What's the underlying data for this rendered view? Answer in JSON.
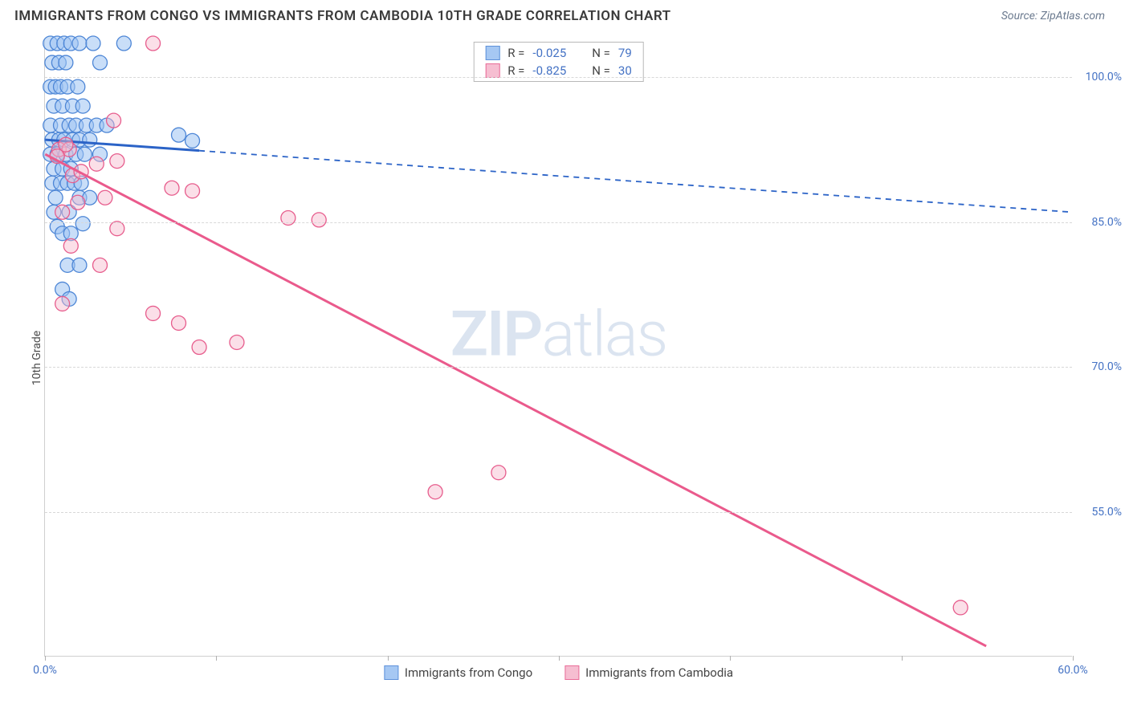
{
  "title": "IMMIGRANTS FROM CONGO VS IMMIGRANTS FROM CAMBODIA 10TH GRADE CORRELATION CHART",
  "source_label": "Source: ZipAtlas.com",
  "watermark_zip": "ZIP",
  "watermark_atlas": "atlas",
  "y_axis": {
    "label": "10th Grade"
  },
  "chart": {
    "type": "scatter-correlation",
    "background_color": "#ffffff",
    "grid_color": "#d8d8d8",
    "axis_color": "#cfcfcf",
    "tick_label_color": "#4472c4",
    "x_min": 0.0,
    "x_max": 60.0,
    "y_min": 40.0,
    "y_max": 104.0,
    "y_ticks": [
      {
        "value": 100.0,
        "label": "100.0%"
      },
      {
        "value": 85.0,
        "label": "85.0%"
      },
      {
        "value": 70.0,
        "label": "70.0%"
      },
      {
        "value": 55.0,
        "label": "55.0%"
      }
    ],
    "x_ticks": [
      {
        "value": 0.0,
        "label": "0.0%"
      },
      {
        "value": 10.0,
        "label": ""
      },
      {
        "value": 20.0,
        "label": ""
      },
      {
        "value": 30.0,
        "label": ""
      },
      {
        "value": 40.0,
        "label": ""
      },
      {
        "value": 50.0,
        "label": ""
      },
      {
        "value": 60.0,
        "label": "60.0%"
      }
    ],
    "series": [
      {
        "id": "congo",
        "name": "Immigrants from Congo",
        "fill": "#9dc3f2",
        "stroke": "#4d86d6",
        "fill_opacity": 0.55,
        "marker_radius": 9,
        "R": "-0.025",
        "N": "79",
        "trend": {
          "x1": 0.0,
          "y1": 93.5,
          "x2": 60.0,
          "y2": 86.0,
          "solid_until_x": 9.0,
          "color": "#2b63c7",
          "width": 3,
          "dash": "7,6"
        },
        "points": [
          [
            0.3,
            103.5
          ],
          [
            0.7,
            103.5
          ],
          [
            1.1,
            103.5
          ],
          [
            1.5,
            103.5
          ],
          [
            2.0,
            103.5
          ],
          [
            2.8,
            103.5
          ],
          [
            4.6,
            103.5
          ],
          [
            0.4,
            101.5
          ],
          [
            0.8,
            101.5
          ],
          [
            1.2,
            101.5
          ],
          [
            3.2,
            101.5
          ],
          [
            0.3,
            99.0
          ],
          [
            0.6,
            99.0
          ],
          [
            0.9,
            99.0
          ],
          [
            1.3,
            99.0
          ],
          [
            1.9,
            99.0
          ],
          [
            0.5,
            97.0
          ],
          [
            1.0,
            97.0
          ],
          [
            1.6,
            97.0
          ],
          [
            2.2,
            97.0
          ],
          [
            0.3,
            95.0
          ],
          [
            0.9,
            95.0
          ],
          [
            1.4,
            95.0
          ],
          [
            1.8,
            95.0
          ],
          [
            2.4,
            95.0
          ],
          [
            3.0,
            95.0
          ],
          [
            3.6,
            95.0
          ],
          [
            0.4,
            93.5
          ],
          [
            0.8,
            93.5
          ],
          [
            1.1,
            93.5
          ],
          [
            1.6,
            93.5
          ],
          [
            2.0,
            93.5
          ],
          [
            2.6,
            93.5
          ],
          [
            7.8,
            94.0
          ],
          [
            8.6,
            93.4
          ],
          [
            0.3,
            92.0
          ],
          [
            0.7,
            92.0
          ],
          [
            1.2,
            92.0
          ],
          [
            1.8,
            92.0
          ],
          [
            2.3,
            92.0
          ],
          [
            3.2,
            92.0
          ],
          [
            0.5,
            90.5
          ],
          [
            1.0,
            90.5
          ],
          [
            1.5,
            90.5
          ],
          [
            0.4,
            89.0
          ],
          [
            0.9,
            89.0
          ],
          [
            1.3,
            89.0
          ],
          [
            1.7,
            89.0
          ],
          [
            2.1,
            89.0
          ],
          [
            0.6,
            87.5
          ],
          [
            2.0,
            87.5
          ],
          [
            2.6,
            87.5
          ],
          [
            0.5,
            86.0
          ],
          [
            1.4,
            86.0
          ],
          [
            0.7,
            84.5
          ],
          [
            1.0,
            83.8
          ],
          [
            1.5,
            83.8
          ],
          [
            2.2,
            84.8
          ],
          [
            1.3,
            80.5
          ],
          [
            2.0,
            80.5
          ],
          [
            1.0,
            78.0
          ],
          [
            1.4,
            77.0
          ]
        ]
      },
      {
        "id": "cambodia",
        "name": "Immigrants from Cambodia",
        "fill": "#f6b8cd",
        "stroke": "#e75d8d",
        "fill_opacity": 0.45,
        "marker_radius": 9,
        "R": "-0.825",
        "N": "30",
        "trend": {
          "x1": 0.0,
          "y1": 92.0,
          "x2": 55.0,
          "y2": 41.0,
          "solid_until_x": 55.0,
          "color": "#ea5a8c",
          "width": 3,
          "dash": ""
        },
        "points": [
          [
            0.8,
            92.5
          ],
          [
            1.4,
            92.5
          ],
          [
            1.2,
            93.0
          ],
          [
            0.7,
            91.8
          ],
          [
            6.3,
            103.5
          ],
          [
            4.0,
            95.5
          ],
          [
            3.0,
            91.0
          ],
          [
            4.2,
            91.3
          ],
          [
            7.4,
            88.5
          ],
          [
            8.6,
            88.2
          ],
          [
            1.6,
            89.8
          ],
          [
            2.1,
            90.2
          ],
          [
            1.0,
            86.0
          ],
          [
            1.9,
            87.0
          ],
          [
            3.5,
            87.5
          ],
          [
            4.2,
            84.3
          ],
          [
            1.5,
            82.5
          ],
          [
            3.2,
            80.5
          ],
          [
            14.2,
            85.4
          ],
          [
            16.0,
            85.2
          ],
          [
            1.0,
            76.5
          ],
          [
            6.3,
            75.5
          ],
          [
            7.8,
            74.5
          ],
          [
            9.0,
            72.0
          ],
          [
            11.2,
            72.5
          ],
          [
            26.5,
            59.0
          ],
          [
            22.8,
            57.0
          ],
          [
            53.5,
            45.0
          ]
        ]
      }
    ]
  },
  "legend_top": {
    "r_label": "R =",
    "n_label": "N ="
  },
  "bottom_legend": {
    "items": [
      {
        "series": "congo"
      },
      {
        "series": "cambodia"
      }
    ]
  }
}
